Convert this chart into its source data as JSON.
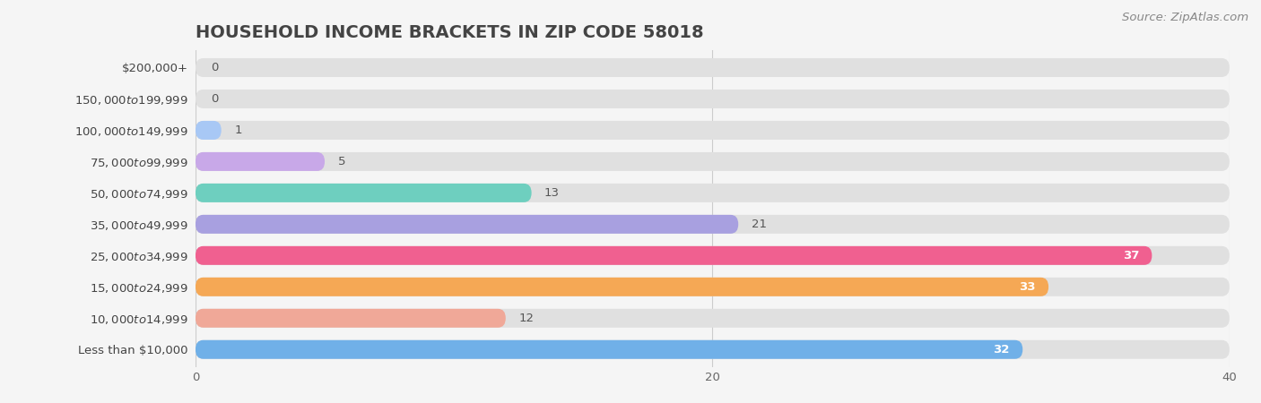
{
  "title": "HOUSEHOLD INCOME BRACKETS IN ZIP CODE 58018",
  "source": "Source: ZipAtlas.com",
  "categories": [
    "Less than $10,000",
    "$10,000 to $14,999",
    "$15,000 to $24,999",
    "$25,000 to $34,999",
    "$35,000 to $49,999",
    "$50,000 to $74,999",
    "$75,000 to $99,999",
    "$100,000 to $149,999",
    "$150,000 to $199,999",
    "$200,000+"
  ],
  "values": [
    0,
    0,
    1,
    5,
    13,
    21,
    37,
    33,
    12,
    32
  ],
  "colors": [
    "#F5C688",
    "#F5A0A0",
    "#A8C8F5",
    "#C8A8E8",
    "#6ECFBF",
    "#A8A0E0",
    "#F06090",
    "#F5A855",
    "#F0A898",
    "#70B0E8"
  ],
  "xlim": [
    0,
    40
  ],
  "xticks": [
    0,
    20,
    40
  ],
  "background_color": "#f5f5f5",
  "bar_bg_color": "#e0e0e0",
  "title_fontsize": 14,
  "label_fontsize": 9.5,
  "value_fontsize": 9.5,
  "source_fontsize": 9.5,
  "bar_height": 0.6,
  "value_inside_threshold": 28
}
